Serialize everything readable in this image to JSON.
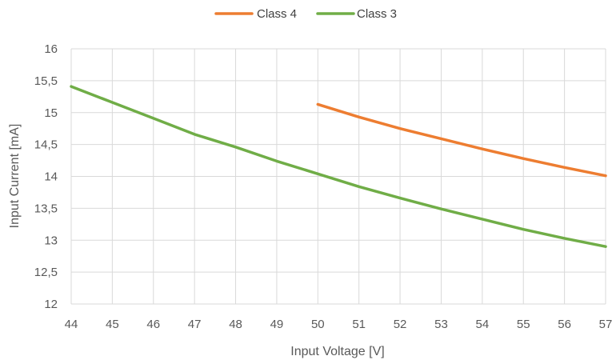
{
  "chart_data": {
    "type": "line",
    "title": "",
    "xlabel": "Input Voltage [V]",
    "ylabel": "Input Current [mA]",
    "xlim": [
      44,
      57
    ],
    "ylim": [
      12,
      16
    ],
    "x_ticks": [
      "44",
      "45",
      "46",
      "47",
      "48",
      "49",
      "50",
      "51",
      "52",
      "53",
      "54",
      "55",
      "56",
      "57"
    ],
    "y_ticks": [
      "12",
      "12,5",
      "13",
      "13,5",
      "14",
      "14,5",
      "15",
      "15,5",
      "16"
    ],
    "grid": true,
    "legend_position": "top",
    "series": [
      {
        "name": "Class 4",
        "color": "#ED7D31",
        "x": [
          50,
          51,
          52,
          53,
          54,
          55,
          56,
          57
        ],
        "y": [
          15.13,
          14.93,
          14.75,
          14.59,
          14.43,
          14.28,
          14.14,
          14.01
        ]
      },
      {
        "name": "Class 3",
        "color": "#70AD47",
        "x": [
          44,
          45,
          46,
          47,
          48,
          49,
          50,
          51,
          52,
          53,
          54,
          55,
          56,
          57
        ],
        "y": [
          15.41,
          15.16,
          14.91,
          14.66,
          14.46,
          14.24,
          14.04,
          13.84,
          13.66,
          13.49,
          13.33,
          13.17,
          13.03,
          12.9
        ]
      }
    ]
  }
}
